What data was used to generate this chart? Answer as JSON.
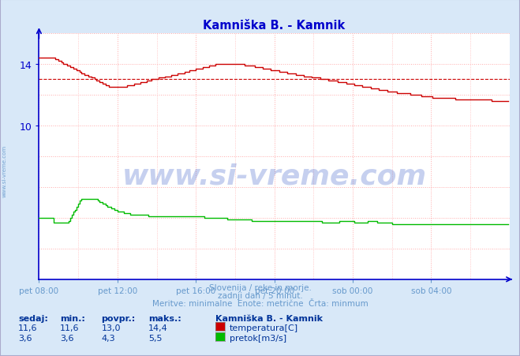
{
  "title": "Kamniška B. - Kamnik",
  "title_color": "#0000cc",
  "bg_color": "#d8e8f8",
  "plot_bg_color": "#ffffff",
  "grid_color": "#ffaaaa",
  "axis_color": "#0000cc",
  "temp_color": "#cc0000",
  "flow_color": "#00bb00",
  "avg_line_color": "#cc0000",
  "avg_line_value": 13.0,
  "ylim": [
    0,
    16
  ],
  "yticks": [
    10,
    14
  ],
  "xtick_labels": [
    "pet 08:00",
    "pet 12:00",
    "pet 16:00",
    "pet 20:00",
    "sob 00:00",
    "sob 04:00"
  ],
  "xtick_positions": [
    0,
    48,
    96,
    144,
    192,
    240
  ],
  "n_points": 288,
  "footer_line1": "Slovenija / reke in morje.",
  "footer_line2": "zadnji dan / 5 minut.",
  "footer_line3": "Meritve: minimalne  Enote: metrične  Črta: minmum",
  "footer_color": "#6699cc",
  "table_header_color": "#003399",
  "table_value_color": "#003399",
  "station_name": "Kamniška B. - Kamnik",
  "temp_stats": [
    11.6,
    11.6,
    13.0,
    14.4
  ],
  "flow_stats": [
    3.6,
    3.6,
    4.3,
    5.5
  ],
  "temp_label": "temperatura[C]",
  "flow_label": "pretok[m3/s]",
  "watermark_text": "www.si-vreme.com",
  "watermark_color": "#4466cc",
  "sidebar_text": "www.si-vreme.com",
  "sidebar_color": "#6699cc"
}
